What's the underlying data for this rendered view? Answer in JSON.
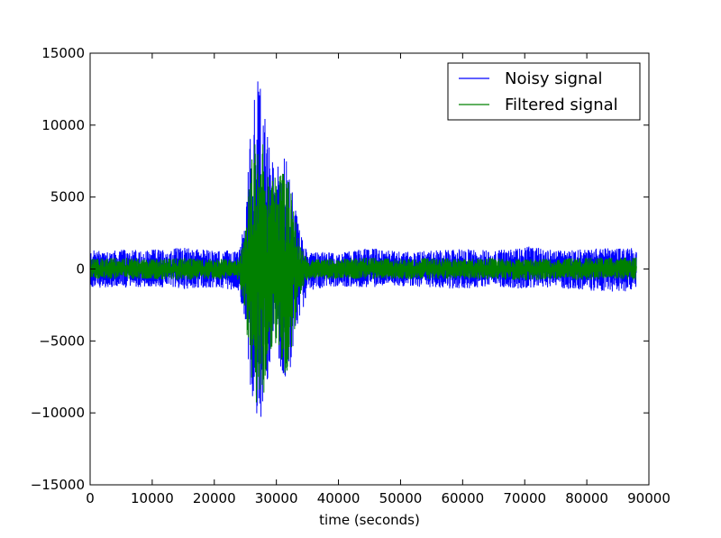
{
  "chart_data": {
    "type": "line",
    "title": "",
    "xlabel": "time (seconds)",
    "ylabel": "",
    "xlim": [
      0,
      90000
    ],
    "ylim": [
      -15000,
      15000
    ],
    "xticks": [
      0,
      10000,
      20000,
      30000,
      40000,
      50000,
      60000,
      70000,
      80000,
      90000
    ],
    "yticks": [
      -15000,
      -10000,
      -5000,
      0,
      5000,
      10000,
      15000
    ],
    "x_tick_labels": [
      "0",
      "10000",
      "20000",
      "30000",
      "40000",
      "50000",
      "60000",
      "70000",
      "80000",
      "90000"
    ],
    "y_tick_labels": [
      "−15000",
      "−10000",
      "−5000",
      "0",
      "5000",
      "10000",
      "15000"
    ],
    "grid": false,
    "legend_position": "top-right",
    "x_range": [
      0,
      88000
    ],
    "series": [
      {
        "name": "Noisy signal",
        "color": "#0000ff",
        "envelope": [
          [
            0,
            1300,
            -1300
          ],
          [
            5000,
            1350,
            -1300
          ],
          [
            10000,
            1350,
            -1250
          ],
          [
            15000,
            1500,
            -1400
          ],
          [
            20000,
            1300,
            -1300
          ],
          [
            24000,
            1300,
            -1500
          ],
          [
            25000,
            3500,
            -4000
          ],
          [
            26000,
            11000,
            -9000
          ],
          [
            27000,
            14000,
            -11500
          ],
          [
            28000,
            11500,
            -9500
          ],
          [
            29000,
            8000,
            -6500
          ],
          [
            30000,
            7000,
            -5000
          ],
          [
            31000,
            8500,
            -8000
          ],
          [
            32000,
            7000,
            -7500
          ],
          [
            33000,
            4500,
            -5000
          ],
          [
            34000,
            2500,
            -3300
          ],
          [
            35000,
            1300,
            -1500
          ],
          [
            40000,
            1100,
            -1200
          ],
          [
            45000,
            1500,
            -1300
          ],
          [
            50000,
            1200,
            -1200
          ],
          [
            55000,
            1300,
            -1300
          ],
          [
            60000,
            1400,
            -1400
          ],
          [
            65000,
            1300,
            -1200
          ],
          [
            70000,
            1600,
            -1400
          ],
          [
            75000,
            1300,
            -1300
          ],
          [
            80000,
            1400,
            -1500
          ],
          [
            85000,
            1500,
            -1600
          ],
          [
            88000,
            1500,
            -1500
          ]
        ]
      },
      {
        "name": "Filtered signal",
        "color": "#008000",
        "envelope": [
          [
            0,
            700,
            -700
          ],
          [
            5000,
            800,
            -700
          ],
          [
            10000,
            700,
            -700
          ],
          [
            15000,
            800,
            -800
          ],
          [
            20000,
            700,
            -700
          ],
          [
            24000,
            700,
            -800
          ],
          [
            25000,
            2500,
            -3000
          ],
          [
            26000,
            8500,
            -9000
          ],
          [
            27000,
            9500,
            -11500
          ],
          [
            28000,
            8500,
            -9500
          ],
          [
            29000,
            6500,
            -6000
          ],
          [
            30000,
            6500,
            -5500
          ],
          [
            31000,
            7000,
            -7500
          ],
          [
            32000,
            6500,
            -7000
          ],
          [
            33000,
            3500,
            -4000
          ],
          [
            34000,
            1500,
            -1800
          ],
          [
            35000,
            700,
            -700
          ],
          [
            40000,
            700,
            -700
          ],
          [
            45000,
            800,
            -700
          ],
          [
            50000,
            700,
            -700
          ],
          [
            55000,
            800,
            -700
          ],
          [
            60000,
            700,
            -700
          ],
          [
            65000,
            800,
            -700
          ],
          [
            70000,
            700,
            -800
          ],
          [
            75000,
            700,
            -700
          ],
          [
            80000,
            800,
            -800
          ],
          [
            85000,
            800,
            -700
          ],
          [
            88000,
            800,
            -800
          ]
        ]
      }
    ]
  }
}
